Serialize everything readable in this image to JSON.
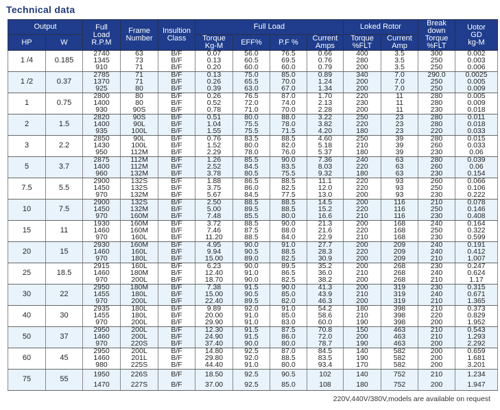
{
  "title": "Technical data",
  "header": {
    "output": "Output",
    "hp": "HP",
    "w": "W",
    "rpm": [
      "Full",
      "Load",
      "R.P.M"
    ],
    "frame": [
      "Frame",
      "Number"
    ],
    "insulation": [
      "Insultion",
      "Class"
    ],
    "full_load": "Full Load",
    "torque": [
      "Torque",
      "Kg-M"
    ],
    "eff": "EFF%",
    "pf": "P.F %",
    "current": [
      "Current",
      "Amps"
    ],
    "locked_rotor": "Loked Rotor",
    "lr_torque": [
      "Torque",
      "%FLT"
    ],
    "lr_current": [
      "Current",
      "Amp"
    ],
    "breakdown": [
      "Break",
      "down",
      "Torque",
      "%FLT"
    ],
    "gd": [
      "Uotor",
      "GD",
      "kg-M"
    ]
  },
  "colors": {
    "header_bg": "#1f3d8c",
    "title": "#1f3a7a",
    "stripe": "#e8f3fc"
  },
  "groups": [
    {
      "hp": "1 /4",
      "w": "0.185",
      "rows": [
        [
          "2740",
          "63",
          "B/F",
          "0.07",
          "56.0",
          "76.5",
          "0.66",
          "400",
          "3.5",
          "300",
          "0.002"
        ],
        [
          "1345",
          "73",
          "B/F",
          "0.13",
          "60.5",
          "69.5",
          "0.76",
          "280",
          "3.5",
          "250",
          "0.003"
        ],
        [
          "910",
          "71",
          "B/F",
          "0.20",
          "60.0",
          "60.0",
          "0.79",
          "200",
          "3.5",
          "250",
          "0.006"
        ]
      ]
    },
    {
      "hp": "1 /2",
      "w": "0.37",
      "rows": [
        [
          "2785",
          "71",
          "B/F",
          "0.13",
          "75.0",
          "85.0",
          "0.89",
          "340",
          "7.0",
          "290.0",
          "0.0025"
        ],
        [
          "1370",
          "71",
          "B/F",
          "0.26",
          "65.5",
          "70.0",
          "1.24",
          "200",
          "7.0",
          "250",
          "0.005"
        ],
        [
          "925",
          "80",
          "B/F",
          "0.39",
          "63.0",
          "67.0",
          "1.34",
          "200",
          "7.0",
          "250",
          "0.009"
        ]
      ]
    },
    {
      "hp": "1",
      "w": "0.75",
      "rows": [
        [
          "2800",
          "80",
          "B/F",
          "0.26",
          "76.5",
          "87.0",
          "1.70",
          "220",
          "11",
          "280",
          "0.005"
        ],
        [
          "1400",
          "80",
          "B/F",
          "0.52",
          "72.0",
          "74.0",
          "2.13",
          "230",
          "11",
          "280",
          "0.009"
        ],
        [
          "930",
          "90S",
          "B/F",
          "0.78",
          "71.0",
          "70.0",
          "2.28",
          "200",
          "11",
          "230",
          "0.018"
        ]
      ]
    },
    {
      "hp": "2",
      "w": "1.5",
      "rows": [
        [
          "2820",
          "90S",
          "B/F",
          "0.51",
          "80.0",
          "88.0",
          "3.22",
          "250",
          "23",
          "280",
          "0.011"
        ],
        [
          "1400",
          "90L",
          "B/F",
          "1.04",
          "75.5",
          "78.0",
          "3.82",
          "220",
          "23",
          "280",
          "0.018"
        ],
        [
          "935",
          "100L",
          "B/F",
          "1.55",
          "75.5",
          "71.5",
          "4.20",
          "180",
          "23",
          "220",
          "0.033"
        ]
      ]
    },
    {
      "hp": "3",
      "w": "2.2",
      "rows": [
        [
          "2850",
          "90L",
          "B/F",
          "0.76",
          "83.5",
          "88.5",
          "4.60",
          "250",
          "39",
          "280",
          "0.015"
        ],
        [
          "1430",
          "100L",
          "B/F",
          "1.52",
          "80.0",
          "82.0",
          "5.18",
          "210",
          "39",
          "260",
          "0.033"
        ],
        [
          "950",
          "112M",
          "B/F",
          "2.29",
          "78.0",
          "76.0",
          "5.37",
          "180",
          "39",
          "230",
          "0.06"
        ]
      ]
    },
    {
      "hp": "5",
      "w": "3.7",
      "rows": [
        [
          "2875",
          "112M",
          "B/F",
          "1.26",
          "85.5",
          "90.0",
          "7.36",
          "240",
          "63",
          "280",
          "0.039"
        ],
        [
          "1400",
          "112M",
          "B/F",
          "2.52",
          "84.5",
          "83.5",
          "8.03",
          "220",
          "63",
          "260",
          "0.06"
        ],
        [
          "960",
          "132M",
          "B/F",
          "3.78",
          "80.5",
          "75.5",
          "9.32",
          "180",
          "63",
          "230",
          "0.154"
        ]
      ]
    },
    {
      "hp": "7.5",
      "w": "5.5",
      "rows": [
        [
          "2900",
          "132S",
          "B/F",
          "1.88",
          "86.5",
          "88.5",
          "11.1",
          "220",
          "93",
          "260",
          "0.066"
        ],
        [
          "1450",
          "132S",
          "B/F",
          "3.75",
          "86.0",
          "82.5",
          "12.0",
          "220",
          "93",
          "250",
          "0.106"
        ],
        [
          "970",
          "132M",
          "B/F",
          "5.67",
          "84.5",
          "77.5",
          "13.0",
          "200",
          "93",
          "230",
          "0.222"
        ]
      ]
    },
    {
      "hp": "10",
      "w": "7.5",
      "rows": [
        [
          "2900",
          "132S",
          "B/F",
          "2.50",
          "88.5",
          "88.5",
          "14.5",
          "200",
          "116",
          "210",
          "0.078"
        ],
        [
          "1450",
          "132M",
          "B/F",
          "5.00",
          "89.5",
          "88.5",
          "15.2",
          "220",
          "116",
          "250",
          "0.146"
        ],
        [
          "970",
          "160M",
          "B/F",
          "7.48",
          "85.5",
          "80.0",
          "16.6",
          "210",
          "116",
          "230",
          "0.408"
        ]
      ]
    },
    {
      "hp": "15",
      "w": "11",
      "rows": [
        [
          "1930",
          "160M",
          "B/F",
          "3.72",
          "88.5",
          "90.0",
          "21.3",
          "200",
          "168",
          "240",
          "0.164"
        ],
        [
          "1460",
          "160M",
          "B/F",
          "7.46",
          "87.5",
          "88.0",
          "21.6",
          "220",
          "168",
          "250",
          "0.322"
        ],
        [
          "970",
          "160L",
          "B/F",
          "11.20",
          "88.5",
          "84.0",
          "22.9",
          "210",
          "168",
          "230",
          "0.599"
        ]
      ]
    },
    {
      "hp": "20",
      "w": "15",
      "rows": [
        [
          "2930",
          "160M",
          "B/F",
          "4.95",
          "90.0",
          "91.0",
          "27.7",
          "200",
          "209",
          "240",
          "0.191"
        ],
        [
          "1460",
          "160L",
          "B/F",
          "9.94",
          "90.5",
          "88.5",
          "28.3",
          "220",
          "209",
          "240",
          "0.412"
        ],
        [
          "970",
          "180L",
          "B/F",
          "15.00",
          "89.0",
          "82.5",
          "30.9",
          "200",
          "209",
          "210",
          "1.007"
        ]
      ]
    },
    {
      "hp": "25",
      "w": "18.5",
      "rows": [
        [
          "2915",
          "160L",
          "B/F",
          "6.23",
          "90.0",
          "89.5",
          "35.2",
          "200",
          "268",
          "230",
          "0.247"
        ],
        [
          "1460",
          "180M",
          "B/F",
          "12.40",
          "91.0",
          "86.5",
          "36.0",
          "210",
          "268",
          "240",
          "0.624"
        ],
        [
          "970",
          "200L",
          "B/F",
          "18.70",
          "90.0",
          "82.5",
          "38.2",
          "200",
          "268",
          "210",
          "1.17"
        ]
      ]
    },
    {
      "hp": "30",
      "w": "22",
      "rows": [
        [
          "2950",
          "180M",
          "B/F",
          "7.38",
          "91.5",
          "90.0",
          "41.3",
          "200",
          "319",
          "230",
          "0.315"
        ],
        [
          "1455",
          "180L",
          "B/F",
          "15.00",
          "90.5",
          "85.0",
          "43.9",
          "210",
          "319",
          "240",
          "0.671"
        ],
        [
          "970",
          "200L",
          "B/F",
          "22.40",
          "89.5",
          "82.0",
          "46.3",
          "200",
          "319",
          "210",
          "1.365"
        ]
      ]
    },
    {
      "hp": "40",
      "w": "30",
      "rows": [
        [
          "2935",
          "180L",
          "B/F",
          "9.89",
          "92.0",
          "91.0",
          "54.2",
          "180",
          "398",
          "210",
          "0.373"
        ],
        [
          "1455",
          "180L",
          "B/F",
          "20.00",
          "91.0",
          "85.0",
          "58.6",
          "210",
          "398",
          "220",
          "0.829"
        ],
        [
          "970",
          "200L",
          "B/F",
          "29.90",
          "91.0",
          "83.0",
          "60.0",
          "190",
          "398",
          "200",
          "1.952"
        ]
      ]
    },
    {
      "hp": "50",
      "w": "37",
      "rows": [
        [
          "2950",
          "200L",
          "B/F",
          "12.30",
          "91.5",
          "87.5",
          "70.8",
          "150",
          "463",
          "210",
          "0.543"
        ],
        [
          "1460",
          "200L",
          "B/F",
          "24.90",
          "91.5",
          "86.0",
          "72.0",
          "200",
          "463",
          "210",
          "1.293"
        ],
        [
          "970",
          "220S",
          "B/F",
          "37.40",
          "90.0",
          "80.0",
          "78.7",
          "190",
          "463",
          "200",
          "2.292"
        ]
      ]
    },
    {
      "hp": "60",
      "w": "45",
      "rows": [
        [
          "2950",
          "200L",
          "B/F",
          "14.80",
          "92.5",
          "87.0",
          "84.5",
          "140",
          "582",
          "200",
          "0.659"
        ],
        [
          "1460",
          "201L",
          "B/F",
          "29.80",
          "92.0",
          "88.5",
          "83.5",
          "190",
          "582",
          "200",
          "1.681"
        ],
        [
          "980",
          "225S",
          "B/F",
          "44.40",
          "91.0",
          "80.0",
          "93.4",
          "170",
          "582",
          "200",
          "3.201"
        ]
      ]
    },
    {
      "hp": "75",
      "w": "55",
      "rows": [
        [
          "1950",
          "226S",
          "B/F",
          "18.50",
          "92.5",
          "90.5",
          "102",
          "140",
          "752",
          "210",
          "1.234"
        ],
        [
          "1470",
          "227S",
          "B/F",
          "37.00",
          "92.5",
          "85.0",
          "108",
          "180",
          "752",
          "200",
          "1.947"
        ]
      ]
    }
  ],
  "footnote": "220V,440V/380V,models are available on request"
}
